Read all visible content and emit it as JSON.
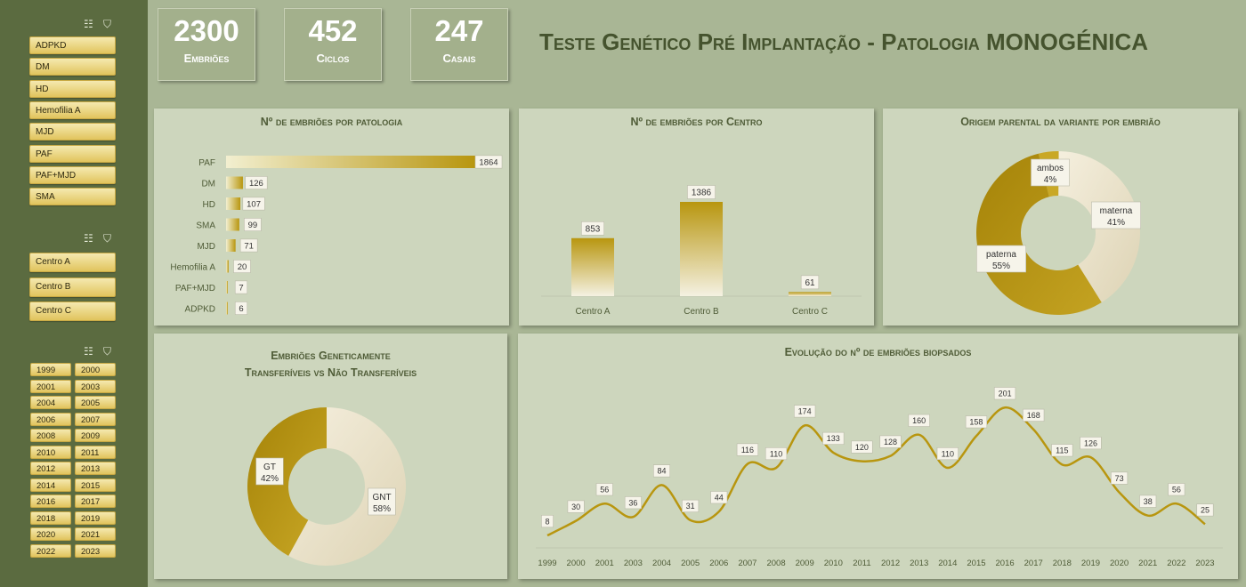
{
  "kpis": [
    {
      "value": "2300",
      "label": "Embriões"
    },
    {
      "value": "452",
      "label": "Ciclos"
    },
    {
      "value": "247",
      "label": "Casais"
    }
  ],
  "title": "Teste Genético Pré Implantação - Patologia MONOGÉNICA",
  "slicers": {
    "patologia": [
      "ADPKD",
      "DM",
      "HD",
      "Hemofilia A",
      "MJD",
      "PAF",
      "PAF+MJD",
      "SMA"
    ],
    "centro": [
      "Centro A",
      "Centro B",
      "Centro C"
    ],
    "ano": [
      "1999",
      "2000",
      "2001",
      "2003",
      "2004",
      "2005",
      "2006",
      "2007",
      "2008",
      "2009",
      "2010",
      "2011",
      "2012",
      "2013",
      "2014",
      "2015",
      "2016",
      "2017",
      "2018",
      "2019",
      "2020",
      "2021",
      "2022",
      "2023"
    ]
  },
  "icons": {
    "multiselect": "multi-select-icon",
    "filter": "clear-filter-icon"
  },
  "colors": {
    "gold": "#b8960f",
    "cream": "#efe8d4",
    "panel": "#cdd6bd",
    "sidebar": "#5b6b40"
  },
  "chart_data": [
    {
      "type": "bar",
      "orientation": "horizontal",
      "title": "Nº de embriões por patologia",
      "categories": [
        "PAF",
        "DM",
        "HD",
        "SMA",
        "MJD",
        "Hemofilia A",
        "PAF+MJD",
        "ADPKD"
      ],
      "values": [
        1864,
        126,
        107,
        99,
        71,
        20,
        7,
        6
      ]
    },
    {
      "type": "bar",
      "title": "Nº de embriões por Centro",
      "categories": [
        "Centro A",
        "Centro B",
        "Centro C"
      ],
      "values": [
        853,
        1386,
        61
      ]
    },
    {
      "type": "pie",
      "title": "Origem parental da variante por embrião",
      "slices": [
        {
          "label": "ambos",
          "value": 4,
          "display": "4%"
        },
        {
          "label": "materna",
          "value": 41,
          "display": "41%"
        },
        {
          "label": "paterna",
          "value": 55,
          "display": "55%"
        }
      ]
    },
    {
      "type": "pie",
      "title_line1": "Embriões Geneticamente",
      "title_line2": "Transferíveis vs Não Transferíveis",
      "slices": [
        {
          "label": "GNT",
          "value": 58,
          "display": "58%"
        },
        {
          "label": "GT",
          "value": 42,
          "display": "42%"
        }
      ]
    },
    {
      "type": "line",
      "title": "Evolução do nº de embriões biopsados",
      "x": [
        "1999",
        "2000",
        "2001",
        "2003",
        "2004",
        "2005",
        "2006",
        "2007",
        "2008",
        "2009",
        "2010",
        "2011",
        "2012",
        "2013",
        "2014",
        "2015",
        "2016",
        "2017",
        "2018",
        "2019",
        "2020",
        "2021",
        "2022",
        "2023"
      ],
      "values": [
        8,
        30,
        56,
        36,
        84,
        31,
        44,
        116,
        110,
        174,
        133,
        120,
        128,
        160,
        110,
        158,
        201,
        168,
        115,
        126,
        73,
        38,
        56,
        25
      ]
    }
  ]
}
